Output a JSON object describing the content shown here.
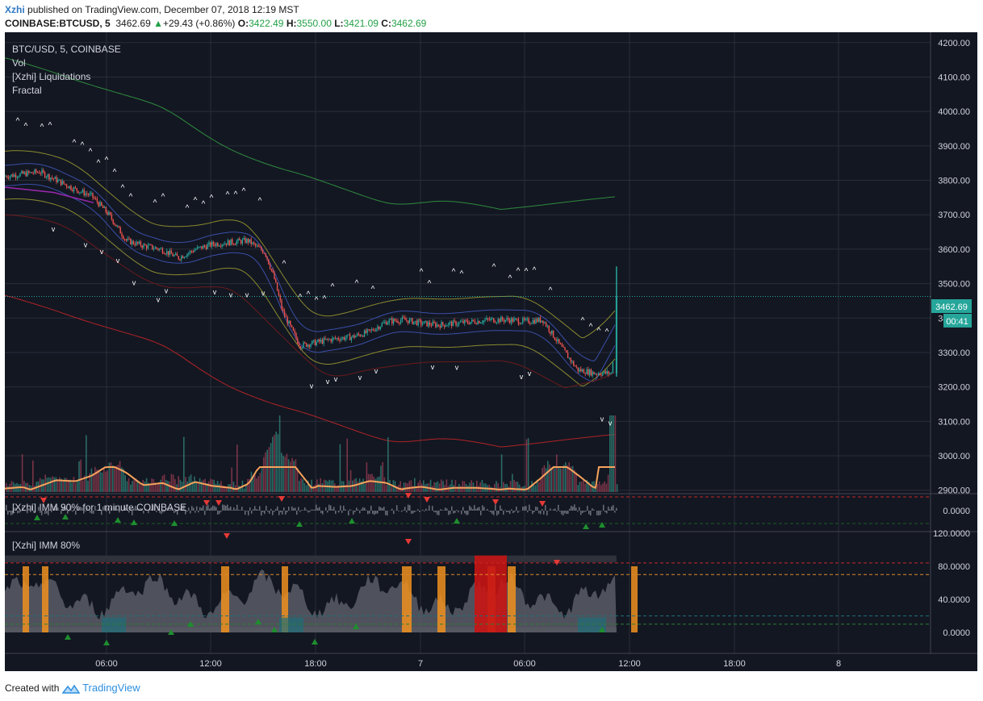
{
  "header": {
    "author": "Xzhi",
    "published": "published on TradingView.com, December 07, 2018 12:19 MST",
    "symbol_line": "COINBASE:BTCUSD, 5",
    "last_value": "3462.69",
    "change_arrow": "▲",
    "change_text": "+29.43 (+0.86%)",
    "o_label": "O:",
    "o_value": "3422.49",
    "h_label": "H:",
    "h_value": "3550.00",
    "l_label": "L:",
    "l_value": "3421.09",
    "c_label": "C:",
    "c_value": "3462.69"
  },
  "legend": {
    "symbol": "BTC/USD, 5, COINBASE",
    "vol": "Vol",
    "liquidations": "[Xzhi] Liquidations",
    "fractal": "Fractal"
  },
  "pane2_title": "[Xzhi] IMM 90% for 1 minute COINBASE",
  "pane3_title": "[Xzhi] IMM 80%",
  "price_tag": "3462.69",
  "countdown_tag": "00:41",
  "footer": {
    "created_with": "Created with",
    "brand": "TradingView"
  },
  "colors": {
    "background": "#131722",
    "candle_up": "#26a69a",
    "candle_down": "#ef5350",
    "outer_band_upper": "#2e8b3d",
    "outer_band_lower": "#b02325",
    "mid_band": "#8a8a2e",
    "inner_band": "#3a4fa8",
    "volume_ma": "#f7a35c",
    "price_line": "#26a69a"
  },
  "chart_data": [
    {
      "type": "line",
      "name": "price",
      "x_ticks": [
        "06:00",
        "12:00",
        "18:00",
        "7",
        "06:00",
        "12:00",
        "18:00",
        "8"
      ],
      "y_ticks": [
        2900,
        3000,
        3100,
        3200,
        3300,
        3400,
        3500,
        3600,
        3700,
        3800,
        3900,
        4000,
        4100,
        4200
      ],
      "ylim": [
        2890,
        4230
      ],
      "x": [
        "01:00",
        "02:00",
        "03:00",
        "04:00",
        "05:00",
        "06:00",
        "07:00",
        "08:00",
        "09:00",
        "10:00",
        "11:00",
        "12:00",
        "13:00",
        "14:00",
        "15:00",
        "16:00",
        "16:30",
        "17:00",
        "18:00",
        "19:00",
        "20:00",
        "21:00",
        "22:00",
        "23:00",
        "00:00",
        "01:00",
        "02:00",
        "03:00",
        "04:00",
        "05:00",
        "06:00",
        "07:00",
        "08:00",
        "09:00",
        "10:00",
        "11:00",
        "12:00",
        "12:15"
      ],
      "close": [
        3812,
        3818,
        3825,
        3800,
        3775,
        3755,
        3700,
        3625,
        3610,
        3600,
        3575,
        3600,
        3615,
        3620,
        3625,
        3590,
        3520,
        3420,
        3320,
        3330,
        3340,
        3345,
        3360,
        3390,
        3395,
        3385,
        3380,
        3385,
        3390,
        3395,
        3395,
        3390,
        3395,
        3320,
        3250,
        3240,
        3240,
        3462
      ],
      "last": 3462.69,
      "grid": true
    },
    {
      "type": "bar",
      "name": "IMM 90%",
      "y_ticks": [
        "0.0000"
      ]
    },
    {
      "type": "area",
      "name": "IMM 80%",
      "y_ticks": [
        "0.0000",
        "40.0000",
        "80.0000",
        "120.0000"
      ],
      "ylim": [
        0,
        120
      ]
    }
  ]
}
